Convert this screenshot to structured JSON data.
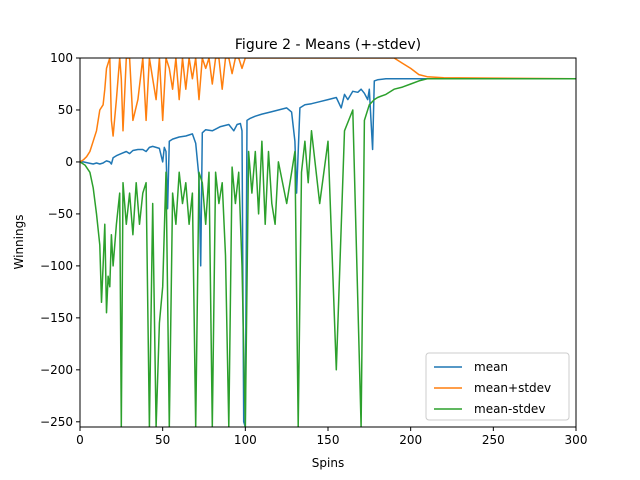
{
  "chart_data": {
    "type": "line",
    "title": "Figure 2 - Means (+-stdev)",
    "xlabel": "Spins",
    "ylabel": "Winnings",
    "xlim": [
      0,
      300
    ],
    "ylim": [
      -255,
      100
    ],
    "xticks": [
      0,
      50,
      100,
      150,
      200,
      250,
      300
    ],
    "yticks": [
      -250,
      -200,
      -150,
      -100,
      -50,
      0,
      50,
      100
    ],
    "grid": false,
    "legend_position": "lower-right",
    "series": [
      {
        "name": "mean",
        "color": "#1f77b4",
        "x": [
          0,
          2,
          5,
          8,
          10,
          12,
          14,
          15,
          16,
          18,
          19,
          20,
          22,
          25,
          28,
          30,
          32,
          35,
          38,
          40,
          42,
          44,
          46,
          48,
          50,
          51,
          52,
          53,
          54,
          56,
          60,
          64,
          68,
          70,
          72,
          73,
          74,
          76,
          80,
          85,
          90,
          93,
          95,
          97,
          98,
          99,
          100,
          101,
          103,
          106,
          110,
          115,
          120,
          125,
          128,
          130,
          131,
          133,
          136,
          140,
          145,
          150,
          155,
          158,
          160,
          162,
          165,
          168,
          170,
          172,
          174,
          175,
          176,
          177,
          178,
          180,
          185,
          190,
          195,
          200,
          210,
          220,
          230,
          250,
          270,
          300
        ],
        "values": [
          0,
          0,
          -1,
          -2,
          -1,
          -2,
          -1,
          0,
          1,
          0,
          -2,
          4,
          6,
          8,
          10,
          8,
          11,
          12,
          12,
          10,
          14,
          15,
          14,
          13,
          0,
          14,
          10,
          -45,
          20,
          22,
          24,
          25,
          27,
          18,
          -15,
          -100,
          28,
          31,
          30,
          34,
          36,
          30,
          36,
          37,
          30,
          -250,
          -255,
          40,
          42,
          44,
          46,
          48,
          50,
          52,
          48,
          20,
          -30,
          52,
          55,
          56,
          58,
          60,
          62,
          52,
          65,
          60,
          68,
          67,
          70,
          66,
          60,
          70,
          40,
          12,
          78,
          79,
          80,
          80,
          80,
          80,
          80,
          80,
          80,
          80,
          80,
          80
        ]
      },
      {
        "name": "mean+stdev",
        "color": "#ff7f0e",
        "x": [
          0,
          2,
          4,
          6,
          8,
          10,
          12,
          14,
          15,
          16,
          18,
          19,
          20,
          22,
          24,
          25,
          26,
          28,
          30,
          32,
          35,
          38,
          40,
          42,
          44,
          46,
          48,
          50,
          52,
          54,
          56,
          58,
          60,
          62,
          64,
          66,
          68,
          70,
          72,
          74,
          76,
          78,
          80,
          82,
          84,
          86,
          88,
          90,
          92,
          94,
          96,
          98,
          100,
          110,
          120,
          130,
          140,
          150,
          160,
          170,
          180,
          190,
          195,
          200,
          205,
          210,
          220,
          300
        ],
        "values": [
          0,
          2,
          5,
          10,
          20,
          30,
          50,
          55,
          70,
          90,
          100,
          40,
          25,
          60,
          100,
          80,
          30,
          100,
          100,
          40,
          60,
          100,
          40,
          100,
          80,
          60,
          100,
          40,
          100,
          90,
          70,
          100,
          60,
          100,
          70,
          100,
          80,
          100,
          60,
          100,
          90,
          100,
          75,
          100,
          100,
          70,
          100,
          100,
          85,
          100,
          100,
          90,
          100,
          100,
          100,
          100,
          100,
          100,
          100,
          100,
          100,
          100,
          95,
          90,
          84,
          82,
          81,
          80
        ]
      },
      {
        "name": "mean-stdev",
        "color": "#2ca02c",
        "x": [
          0,
          3,
          6,
          8,
          10,
          12,
          13,
          14,
          15,
          16,
          17,
          18,
          19,
          20,
          22,
          24,
          25,
          26,
          28,
          30,
          32,
          34,
          36,
          38,
          40,
          42,
          44,
          46,
          48,
          50,
          52,
          54,
          56,
          58,
          60,
          62,
          64,
          66,
          68,
          70,
          72,
          74,
          76,
          78,
          80,
          82,
          84,
          86,
          88,
          90,
          92,
          94,
          96,
          98,
          100,
          102,
          104,
          106,
          108,
          110,
          112,
          114,
          116,
          118,
          120,
          125,
          130,
          132,
          134,
          136,
          138,
          140,
          145,
          150,
          155,
          160,
          165,
          170,
          172,
          175,
          178,
          180,
          185,
          190,
          195,
          200,
          205,
          210,
          220,
          300
        ],
        "values": [
          0,
          -3,
          -10,
          -25,
          -50,
          -80,
          -135,
          -100,
          -60,
          -145,
          -110,
          -120,
          -70,
          -100,
          -60,
          -30,
          -255,
          -20,
          -60,
          -30,
          -70,
          -20,
          -60,
          -30,
          -20,
          -255,
          -40,
          -255,
          -155,
          -120,
          -10,
          -255,
          -30,
          -60,
          -10,
          -40,
          -20,
          -60,
          -30,
          -255,
          -10,
          -20,
          -60,
          -10,
          -255,
          -10,
          -40,
          -20,
          -90,
          -255,
          -5,
          -40,
          -10,
          -100,
          -255,
          10,
          -30,
          10,
          -50,
          20,
          -60,
          10,
          -40,
          -60,
          0,
          -40,
          10,
          -255,
          -10,
          20,
          -20,
          30,
          -40,
          20,
          -200,
          30,
          50,
          -255,
          40,
          55,
          60,
          62,
          65,
          70,
          72,
          75,
          78,
          80,
          80,
          80
        ]
      }
    ]
  }
}
